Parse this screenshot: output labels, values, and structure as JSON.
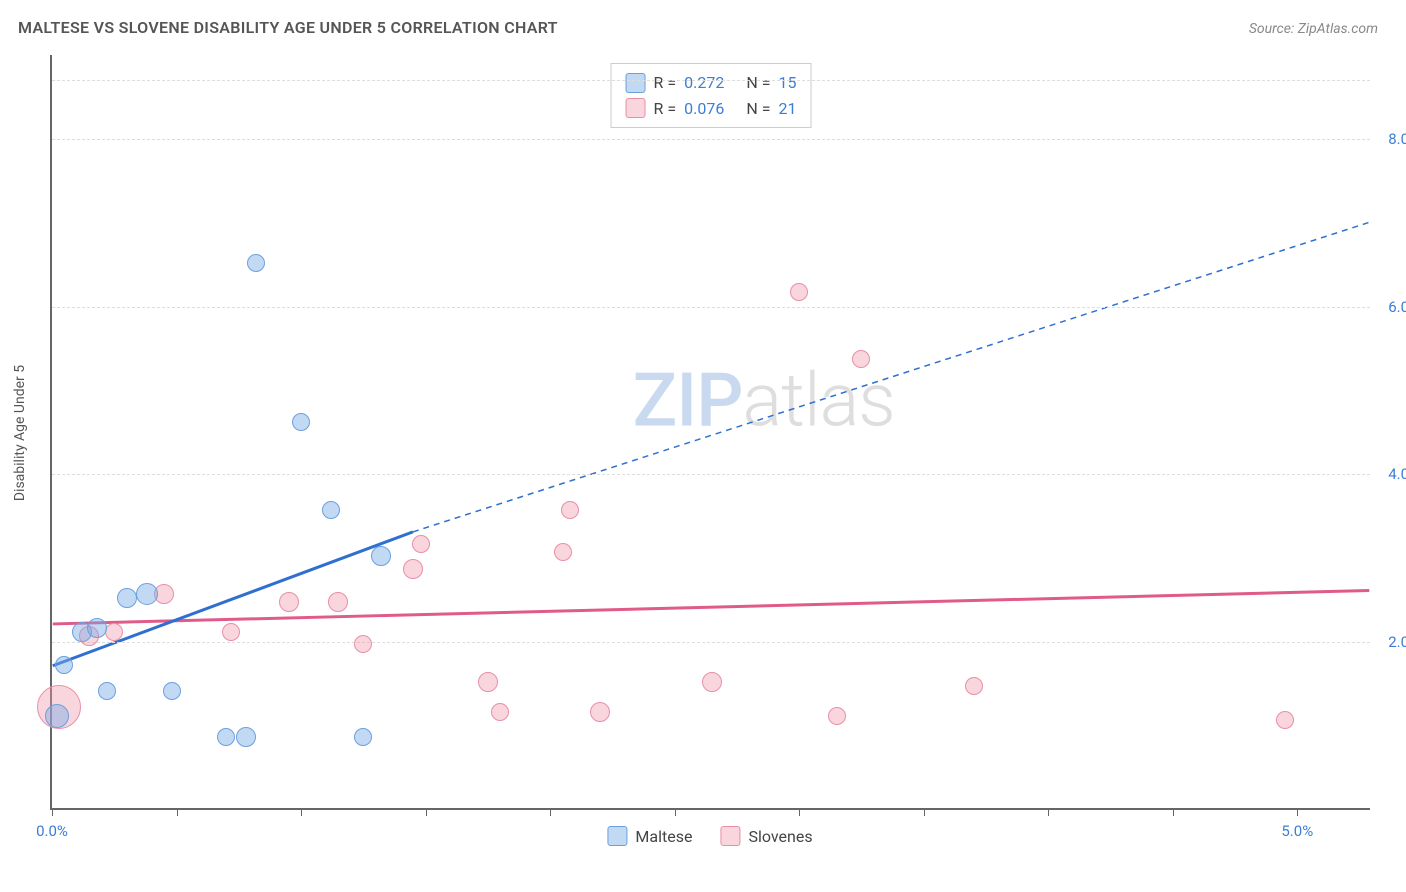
{
  "header": {
    "title": "MALTESE VS SLOVENE DISABILITY AGE UNDER 5 CORRELATION CHART",
    "source": "Source: ZipAtlas.com"
  },
  "axes": {
    "y_label": "Disability Age Under 5",
    "y_min": 0.0,
    "y_max": 9.0,
    "y_gridlines": [
      2.0,
      4.0,
      6.0,
      8.0
    ],
    "y_tick_labels": [
      "2.0%",
      "4.0%",
      "6.0%",
      "8.0%"
    ],
    "x_min": 0.0,
    "x_max": 5.3,
    "x_ticks": [
      0.0,
      0.5,
      1.0,
      1.5,
      2.0,
      2.5,
      3.0,
      3.5,
      4.0,
      4.5,
      5.0
    ],
    "x_tick_labels": {
      "0": "0.0%",
      "10": "5.0%"
    }
  },
  "series": {
    "maltese": {
      "label": "Maltese",
      "fill": "rgba(120,170,230,0.45)",
      "stroke": "#6ca0dd",
      "points": [
        {
          "x": 0.02,
          "y": 1.1,
          "r": 12
        },
        {
          "x": 0.05,
          "y": 1.7,
          "r": 9
        },
        {
          "x": 0.12,
          "y": 2.1,
          "r": 10
        },
        {
          "x": 0.18,
          "y": 2.15,
          "r": 10
        },
        {
          "x": 0.22,
          "y": 1.4,
          "r": 9
        },
        {
          "x": 0.3,
          "y": 2.5,
          "r": 10
        },
        {
          "x": 0.38,
          "y": 2.55,
          "r": 11
        },
        {
          "x": 0.48,
          "y": 1.4,
          "r": 9
        },
        {
          "x": 0.7,
          "y": 0.85,
          "r": 9
        },
        {
          "x": 0.78,
          "y": 0.85,
          "r": 10
        },
        {
          "x": 0.82,
          "y": 6.5,
          "r": 9
        },
        {
          "x": 1.0,
          "y": 4.6,
          "r": 9
        },
        {
          "x": 1.12,
          "y": 3.55,
          "r": 9
        },
        {
          "x": 1.25,
          "y": 0.85,
          "r": 9
        },
        {
          "x": 1.32,
          "y": 3.0,
          "r": 10
        }
      ],
      "trend": {
        "x1": 0.0,
        "y1": 1.7,
        "x2": 1.45,
        "y2": 3.3,
        "color": "#2f6fd0",
        "width": 3,
        "dash": "none",
        "ext_x2": 5.3,
        "ext_y2": 7.0,
        "ext_dash": "6,5",
        "ext_width": 1.5
      }
    },
    "slovenes": {
      "label": "Slovenes",
      "fill": "rgba(240,150,170,0.40)",
      "stroke": "#e98fa8",
      "points": [
        {
          "x": 0.03,
          "y": 1.2,
          "r": 22
        },
        {
          "x": 0.15,
          "y": 2.05,
          "r": 10
        },
        {
          "x": 0.25,
          "y": 2.1,
          "r": 9
        },
        {
          "x": 0.45,
          "y": 2.55,
          "r": 10
        },
        {
          "x": 0.72,
          "y": 2.1,
          "r": 9
        },
        {
          "x": 0.95,
          "y": 2.45,
          "r": 10
        },
        {
          "x": 1.15,
          "y": 2.45,
          "r": 10
        },
        {
          "x": 1.25,
          "y": 1.95,
          "r": 9
        },
        {
          "x": 1.48,
          "y": 3.15,
          "r": 9
        },
        {
          "x": 1.45,
          "y": 2.85,
          "r": 10
        },
        {
          "x": 1.75,
          "y": 1.5,
          "r": 10
        },
        {
          "x": 1.8,
          "y": 1.15,
          "r": 9
        },
        {
          "x": 2.05,
          "y": 3.05,
          "r": 9
        },
        {
          "x": 2.08,
          "y": 3.55,
          "r": 9
        },
        {
          "x": 2.2,
          "y": 1.15,
          "r": 10
        },
        {
          "x": 2.65,
          "y": 1.5,
          "r": 10
        },
        {
          "x": 3.0,
          "y": 6.15,
          "r": 9
        },
        {
          "x": 3.15,
          "y": 1.1,
          "r": 9
        },
        {
          "x": 3.25,
          "y": 5.35,
          "r": 9
        },
        {
          "x": 3.7,
          "y": 1.45,
          "r": 9
        },
        {
          "x": 4.95,
          "y": 1.05,
          "r": 9
        }
      ],
      "trend": {
        "x1": 0.0,
        "y1": 2.2,
        "x2": 5.3,
        "y2": 2.6,
        "color": "#e05a8a",
        "width": 3,
        "dash": "none"
      }
    }
  },
  "stats_legend": [
    {
      "swatch_fill": "rgba(120,170,230,0.45)",
      "swatch_stroke": "#6ca0dd",
      "r_label": "R =",
      "r_val": "0.272",
      "n_label": "N =",
      "n_val": "15"
    },
    {
      "swatch_fill": "rgba(240,150,170,0.40)",
      "swatch_stroke": "#e98fa8",
      "r_label": "R =",
      "r_val": "0.076",
      "n_label": "N =",
      "n_val": "21"
    }
  ],
  "watermark": {
    "zip": "ZIP",
    "atlas": "atlas"
  },
  "colors": {
    "grid": "#dddddd",
    "axis": "#666666",
    "tick_text": "#3b7dd8",
    "title_text": "#555555"
  }
}
